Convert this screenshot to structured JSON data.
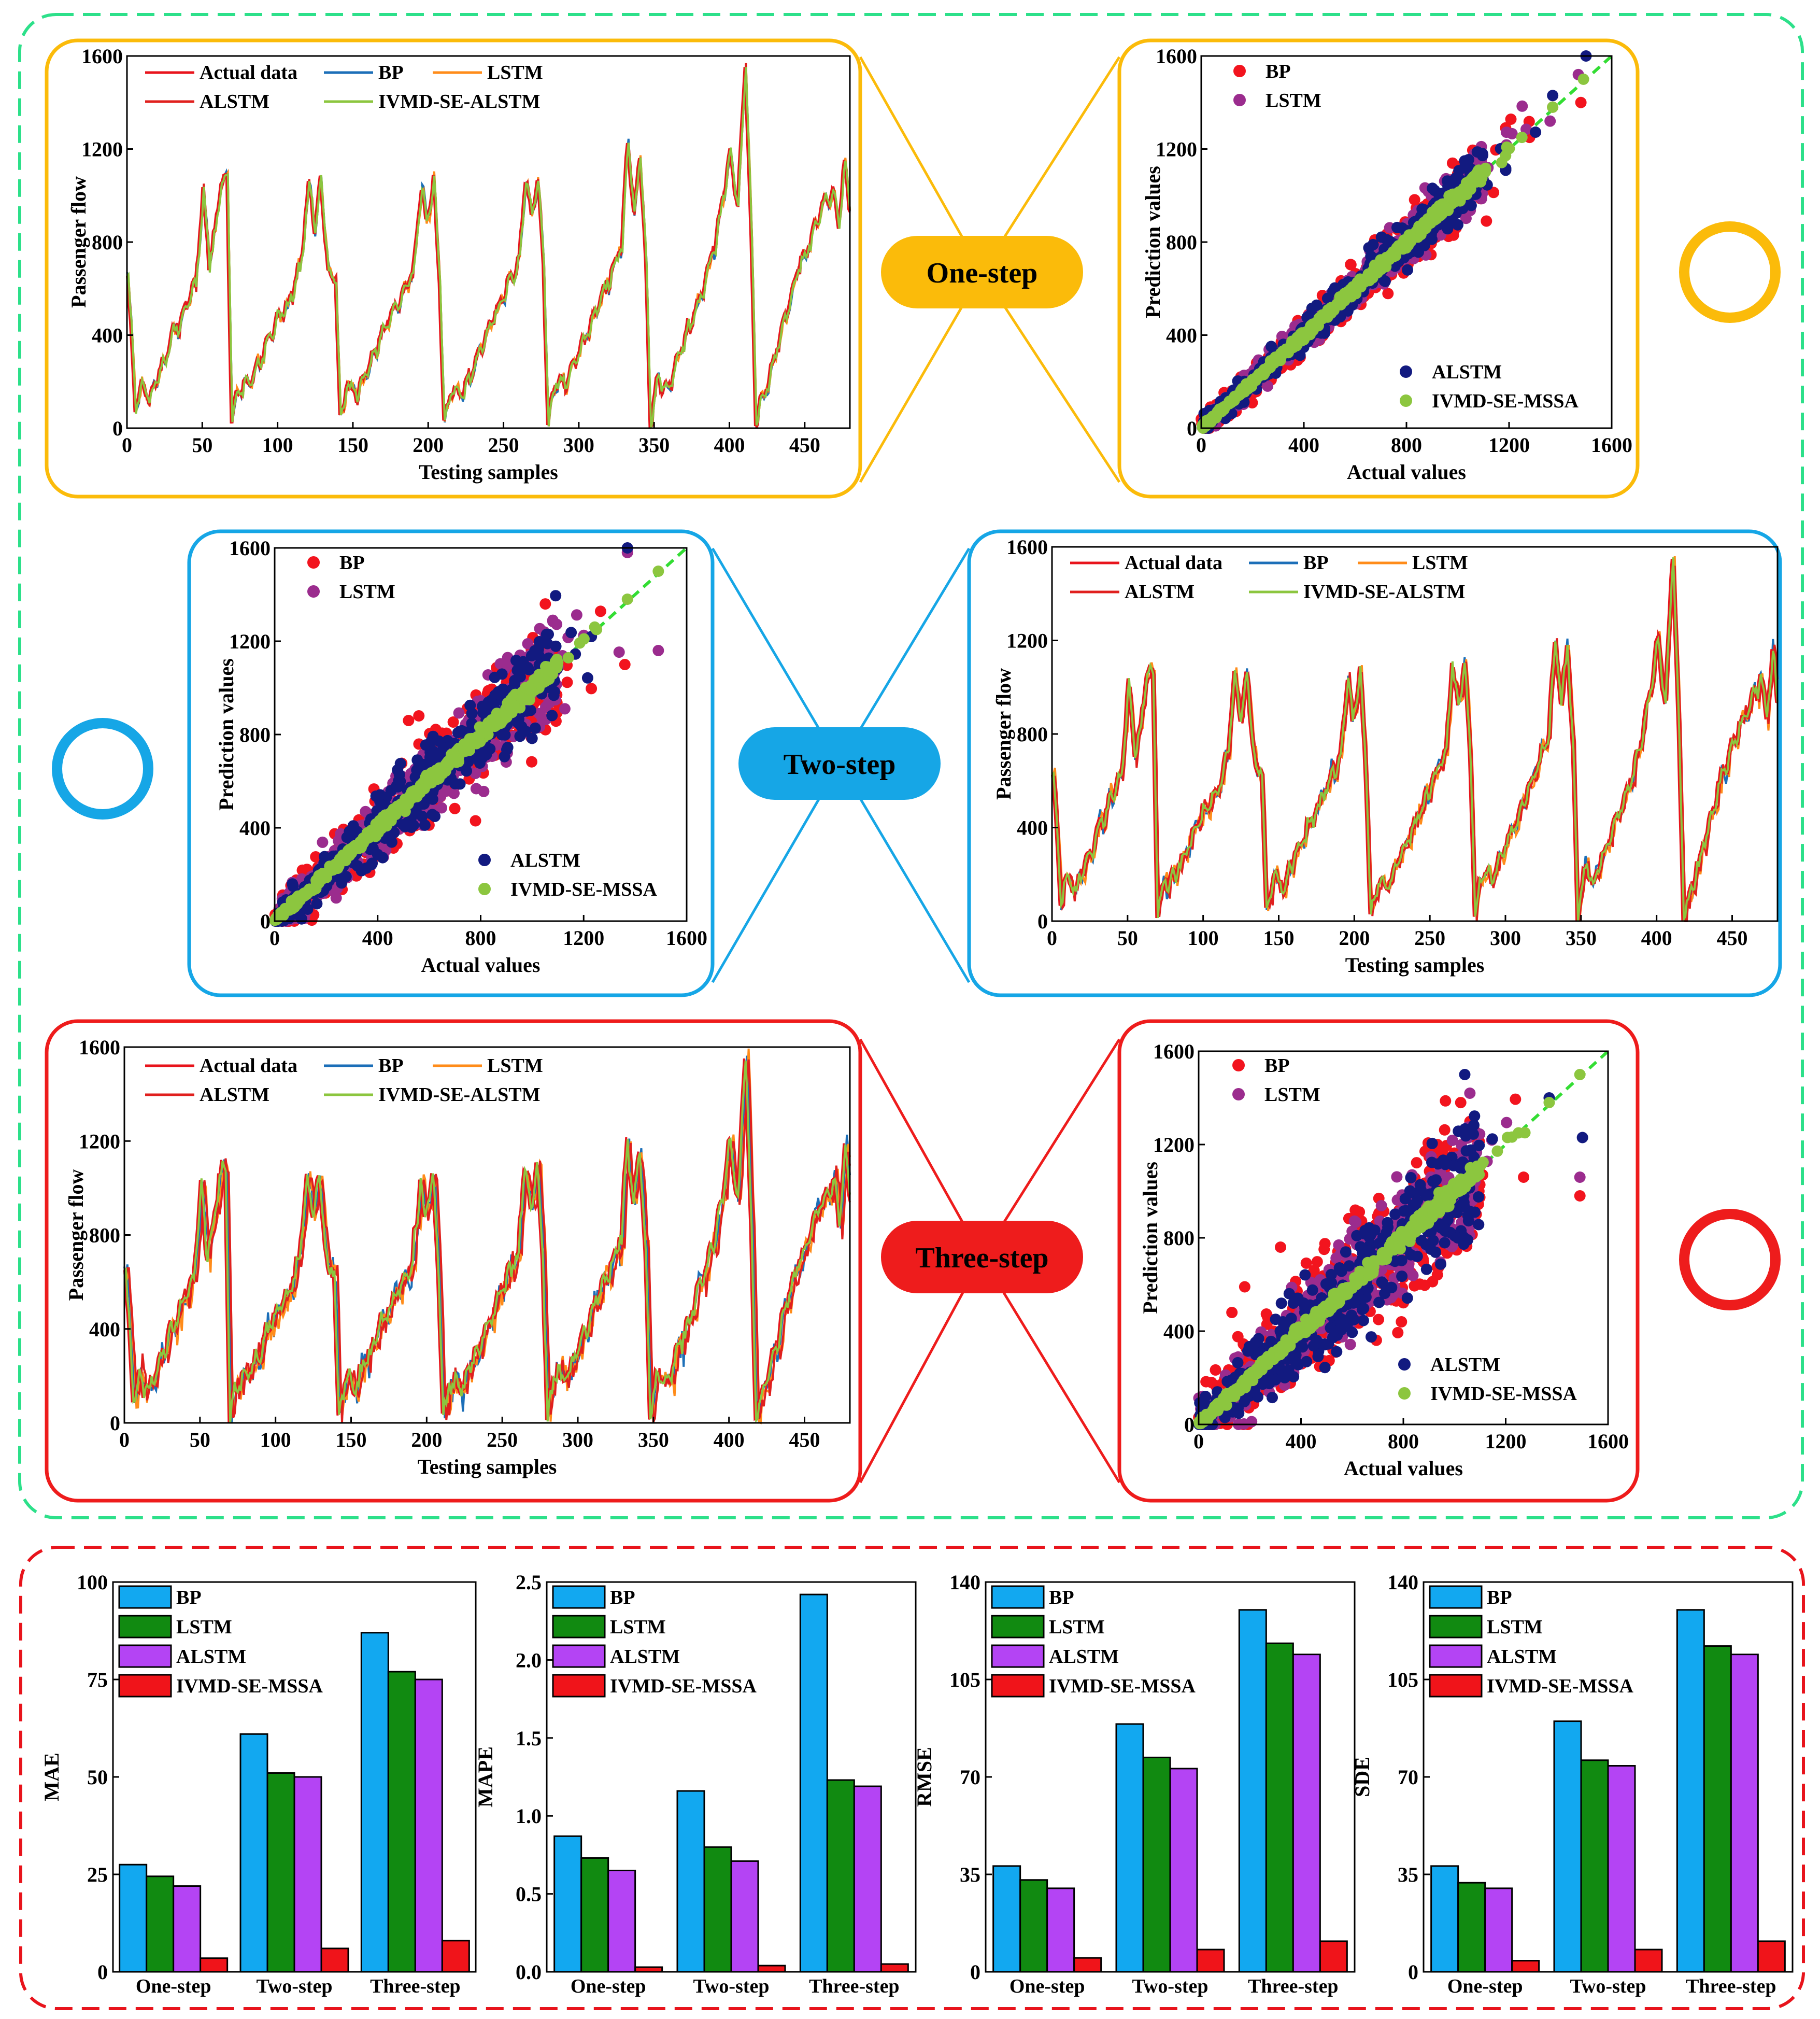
{
  "colors": {
    "actual": "#e8141c",
    "bp_line": "#1c6fb8",
    "lstm_line": "#ff8c1a",
    "alstm_line": "#e0201e",
    "ivmd_line": "#8cc63f",
    "bp_dot": "#f2141e",
    "lstm_dot": "#9b2c8e",
    "alstm_dot": "#121a80",
    "ivmd_dot": "#8cc63f",
    "diag": "#33dd33",
    "frame_outer": "#2de08a",
    "frame_bottom": "#e8141c",
    "one": "#fbbb0a",
    "two": "#16a6e6",
    "three": "#ee1c1c",
    "bar_bp": "#12a8f0",
    "bar_lstm": "#118a11",
    "bar_alstm": "#b444f4",
    "bar_ivmd": "#f0141a"
  },
  "step_labels": {
    "one": "One-step",
    "two": "Two-step",
    "three": "Three-step"
  },
  "line_legend": [
    "Actual data",
    "BP",
    "LSTM",
    "ALSTM",
    "IVMD-SE-ALSTM"
  ],
  "scatter_legend": [
    "BP",
    "LSTM",
    "ALSTM",
    "IVMD-SE-MSSA"
  ],
  "line_chart_text": {
    "xlabel": "Testing samples",
    "ylabel": "Passenger flow",
    "xticks": [
      "0",
      "50",
      "100",
      "150",
      "200",
      "250",
      "300",
      "350",
      "400",
      "450"
    ],
    "yticks": [
      "0",
      "400",
      "800",
      "1200",
      "1600"
    ]
  },
  "scatter_chart_text": {
    "xlabel": "Actual values",
    "ylabel": "Prediction values",
    "xticks": [
      "0",
      "400",
      "800",
      "1200",
      "1600"
    ],
    "yticks": [
      "0",
      "400",
      "800",
      "1200",
      "1600"
    ]
  },
  "chart_data": [
    {
      "id": "line-one-step",
      "type": "line",
      "xlabel": "Testing samples",
      "ylabel": "Passenger flow",
      "xlim": [
        0,
        480
      ],
      "ylim": [
        0,
        1600
      ],
      "series_names": [
        "Actual data",
        "BP",
        "LSTM",
        "ALSTM",
        "IVMD-SE-ALSTM"
      ],
      "actual": {
        "x": [
          0,
          5,
          10,
          15,
          20,
          25,
          30,
          35,
          40,
          45,
          50,
          54,
          58,
          62,
          66,
          69,
          72,
          78,
          85,
          92,
          100,
          108,
          115,
          120,
          124,
          128,
          134,
          138,
          141,
          146,
          152,
          160,
          168,
          176,
          184,
          190,
          195,
          198,
          203,
          207,
          210,
          215,
          222,
          230,
          238,
          246,
          254,
          260,
          264,
          268,
          272,
          276,
          279,
          284,
          290,
          298,
          306,
          314,
          322,
          328,
          332,
          336,
          340,
          344,
          347,
          352,
          358,
          366,
          374,
          382,
          390,
          396,
          400,
          405,
          410,
          414,
          417,
          422,
          430,
          438,
          446,
          454,
          462,
          468,
          472,
          476,
          479
        ],
        "y": [
          640,
          100,
          190,
          120,
          230,
          300,
          400,
          460,
          560,
          620,
          1010,
          720,
          840,
          1060,
          1070,
          30,
          150,
          180,
          250,
          360,
          480,
          560,
          700,
          1040,
          880,
          1050,
          630,
          650,
          30,
          200,
          140,
          280,
          400,
          500,
          600,
          700,
          1040,
          860,
          1060,
          640,
          20,
          170,
          150,
          280,
          400,
          520,
          640,
          720,
          1100,
          900,
          1100,
          700,
          20,
          220,
          180,
          300,
          430,
          560,
          680,
          800,
          1220,
          920,
          1180,
          700,
          20,
          220,
          160,
          320,
          460,
          600,
          800,
          1020,
          1200,
          940,
          1580,
          800,
          30,
          140,
          320,
          520,
          700,
          820,
          960,
          1020,
          880,
          1140,
          960
        ]
      },
      "offsets_approx": {
        "BP": 1,
        "LSTM": 1,
        "ALSTM": 1,
        "IVMD-SE-ALSTM": 1
      }
    },
    {
      "id": "scatter-one-step",
      "type": "scatter",
      "xlabel": "Actual values",
      "ylabel": "Prediction values",
      "xlim": [
        0,
        1600
      ],
      "ylim": [
        0,
        1600
      ],
      "series_names": [
        "BP",
        "LSTM",
        "ALSTM",
        "IVMD-SE-MSSA"
      ],
      "spread_approx": {
        "BP": 75,
        "LSTM": 65,
        "ALSTM": 60,
        "IVMD-SE-MSSA": 15
      },
      "outliers": {
        "BP": [
          [
            1280,
            1250
          ],
          [
            1370,
            1380
          ],
          [
            1480,
            1400
          ]
        ],
        "LSTM": [
          [
            1360,
            1320
          ],
          [
            1470,
            1520
          ]
        ],
        "ALSTM": [
          [
            1500,
            1600
          ],
          [
            1370,
            1430
          ]
        ]
      }
    },
    {
      "id": "scatter-two-step",
      "type": "scatter",
      "xlabel": "Actual values",
      "ylabel": "Prediction values",
      "xlim": [
        0,
        1600
      ],
      "ylim": [
        0,
        1600
      ],
      "series_names": [
        "BP",
        "LSTM",
        "ALSTM",
        "IVMD-SE-MSSA"
      ],
      "spread_approx": {
        "BP": 130,
        "LSTM": 115,
        "ALSTM": 105,
        "IVMD-SE-MSSA": 20
      },
      "outliers": {
        "BP": [
          [
            520,
            860
          ],
          [
            560,
            880
          ],
          [
            780,
            430
          ],
          [
            1360,
            1100
          ]
        ],
        "LSTM": [
          [
            1490,
            1160
          ],
          [
            1370,
            1580
          ]
        ],
        "ALSTM": [
          [
            1370,
            1600
          ],
          [
            1230,
            1220
          ]
        ]
      }
    },
    {
      "id": "line-two-step",
      "type": "line",
      "xlabel": "Testing samples",
      "ylabel": "Passenger flow",
      "xlim": [
        0,
        480
      ],
      "ylim": [
        0,
        1600
      ],
      "series_names": [
        "Actual data",
        "BP",
        "LSTM",
        "ALSTM",
        "IVMD-SE-ALSTM"
      ],
      "offsets_approx": {
        "BP": 1,
        "LSTM": 2,
        "ALSTM": 2,
        "IVMD-SE-ALSTM": 1
      }
    },
    {
      "id": "line-three-step",
      "type": "line",
      "xlabel": "Testing samples",
      "ylabel": "Passenger flow",
      "xlim": [
        0,
        480
      ],
      "ylim": [
        0,
        1600
      ],
      "series_names": [
        "Actual data",
        "BP",
        "LSTM",
        "ALSTM",
        "IVMD-SE-ALSTM"
      ],
      "offsets_approx": {
        "BP": 2,
        "LSTM": 3,
        "ALSTM": 3,
        "IVMD-SE-ALSTM": 1
      }
    },
    {
      "id": "scatter-three-step",
      "type": "scatter",
      "xlabel": "Actual values",
      "ylabel": "Prediction values",
      "xlim": [
        0,
        1600
      ],
      "ylim": [
        0,
        1600
      ],
      "series_names": [
        "BP",
        "LSTM",
        "ALSTM",
        "IVMD-SE-MSSA"
      ],
      "spread_approx": {
        "BP": 190,
        "LSTM": 150,
        "ALSTM": 140,
        "IVMD-SE-MSSA": 22
      },
      "outliers": {
        "BP": [
          [
            130,
            480
          ],
          [
            180,
            590
          ],
          [
            320,
            760
          ],
          [
            1270,
            1060
          ],
          [
            1490,
            980
          ]
        ],
        "LSTM": [
          [
            1060,
            1420
          ],
          [
            1490,
            1060
          ]
        ],
        "ALSTM": [
          [
            1040,
            1500
          ],
          [
            1370,
            1400
          ],
          [
            1500,
            1230
          ]
        ]
      }
    },
    {
      "id": "bar-mae",
      "type": "bar",
      "ylabel": "MAE",
      "ylim": [
        0,
        100
      ],
      "yticks": [
        "0",
        "25",
        "50",
        "75",
        "100"
      ],
      "categories": [
        "One-step",
        "Two-step",
        "Three-step"
      ],
      "series": [
        {
          "name": "BP",
          "values": [
            27.5,
            61,
            87
          ]
        },
        {
          "name": "LSTM",
          "values": [
            24.5,
            51,
            77
          ]
        },
        {
          "name": "ALSTM",
          "values": [
            22,
            50,
            75
          ]
        },
        {
          "name": "IVMD-SE-MSSA",
          "values": [
            3.5,
            6,
            8
          ]
        }
      ]
    },
    {
      "id": "bar-mape",
      "type": "bar",
      "ylabel": "MAPE",
      "ylim": [
        0,
        2.5
      ],
      "yticks": [
        "0.0",
        "0.5",
        "1.0",
        "1.5",
        "2.0",
        "2.5"
      ],
      "categories": [
        "One-step",
        "Two-step",
        "Three-step"
      ],
      "series": [
        {
          "name": "BP",
          "values": [
            0.87,
            1.16,
            2.42
          ]
        },
        {
          "name": "LSTM",
          "values": [
            0.73,
            0.8,
            1.23
          ]
        },
        {
          "name": "ALSTM",
          "values": [
            0.65,
            0.71,
            1.19
          ]
        },
        {
          "name": "IVMD-SE-MSSA",
          "values": [
            0.03,
            0.04,
            0.05
          ]
        }
      ]
    },
    {
      "id": "bar-rmse",
      "type": "bar",
      "ylabel": "RMSE",
      "ylim": [
        0,
        140
      ],
      "yticks": [
        "0",
        "35",
        "70",
        "105",
        "140"
      ],
      "categories": [
        "One-step",
        "Two-step",
        "Three-step"
      ],
      "series": [
        {
          "name": "BP",
          "values": [
            38,
            89,
            130
          ]
        },
        {
          "name": "LSTM",
          "values": [
            33,
            77,
            118
          ]
        },
        {
          "name": "ALSTM",
          "values": [
            30,
            73,
            114
          ]
        },
        {
          "name": "IVMD-SE-MSSA",
          "values": [
            5,
            8,
            11
          ]
        }
      ]
    },
    {
      "id": "bar-sde",
      "type": "bar",
      "ylabel": "SDE",
      "ylim": [
        0,
        140
      ],
      "yticks": [
        "0",
        "35",
        "70",
        "105",
        "140"
      ],
      "categories": [
        "One-step",
        "Two-step",
        "Three-step"
      ],
      "series": [
        {
          "name": "BP",
          "values": [
            38,
            90,
            130
          ]
        },
        {
          "name": "LSTM",
          "values": [
            32,
            76,
            117
          ]
        },
        {
          "name": "ALSTM",
          "values": [
            30,
            74,
            114
          ]
        },
        {
          "name": "IVMD-SE-MSSA",
          "values": [
            4,
            8,
            11
          ]
        }
      ]
    }
  ]
}
